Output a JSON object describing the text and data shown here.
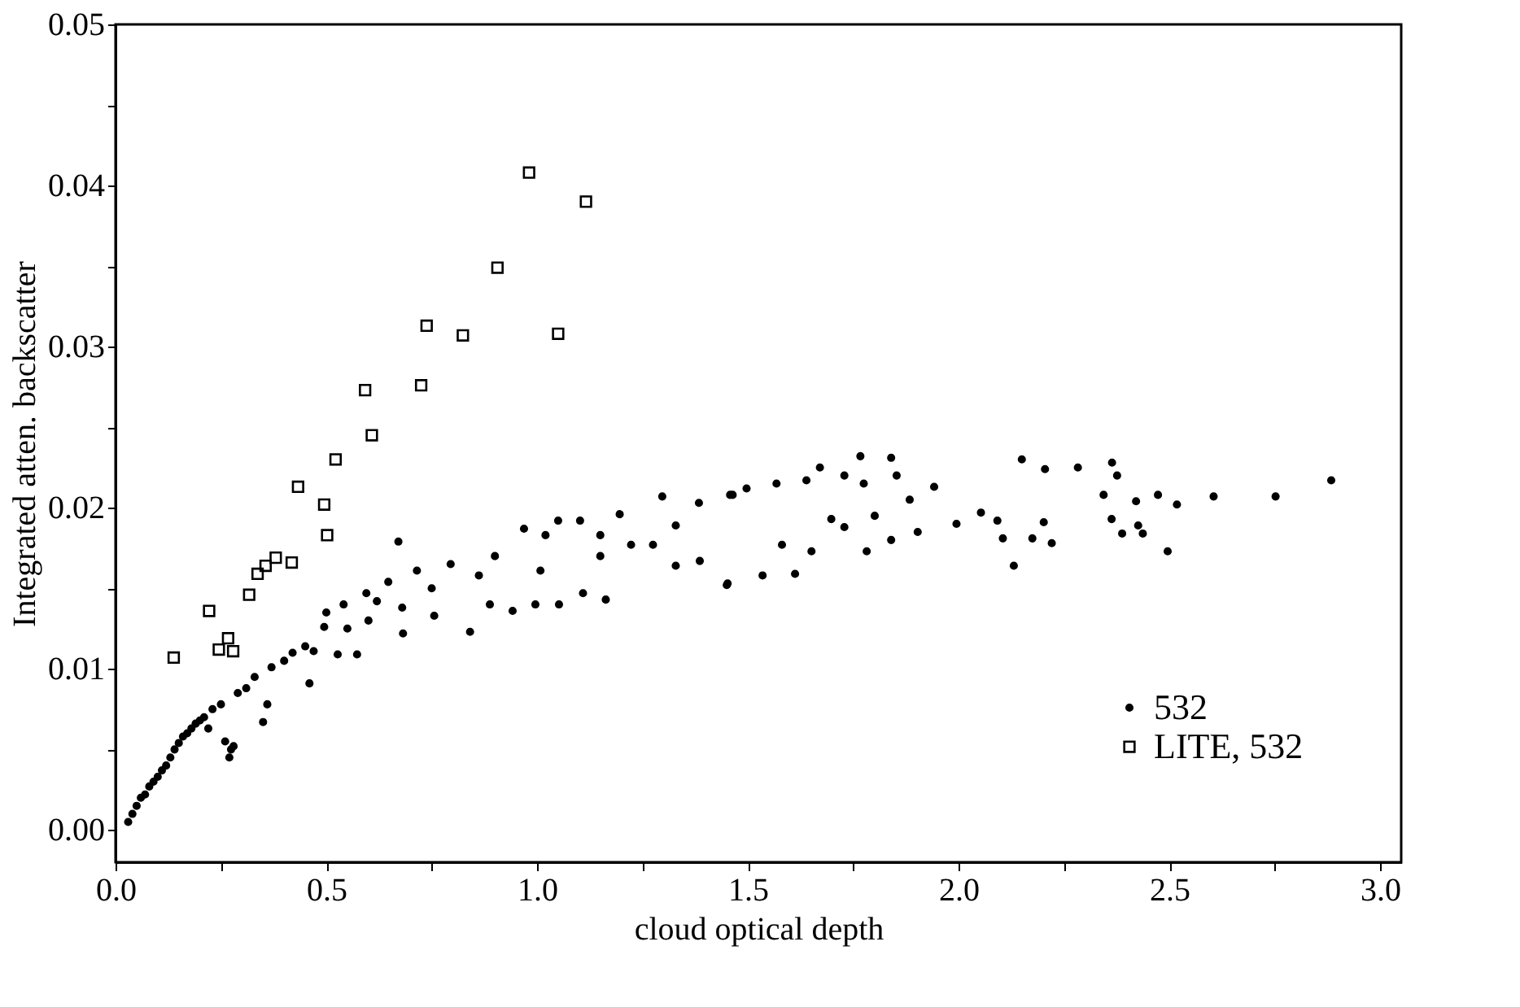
{
  "chart_data": {
    "type": "scatter",
    "xlabel": "cloud optical depth",
    "ylabel": "Integrated atten. backscatter",
    "xlim": [
      0,
      3.05
    ],
    "ylim": [
      -0.002,
      0.05
    ],
    "xticks": [
      {
        "value": 0,
        "label": "0.0"
      },
      {
        "value": 0.25,
        "label": null
      },
      0.5,
      {
        "value": 0.75,
        "label": null
      },
      {
        "value": 1,
        "label": "1.0"
      },
      {
        "value": 1.25,
        "label": null
      },
      1.5,
      {
        "value": 1.75,
        "label": null
      },
      {
        "value": 2,
        "label": "2.0"
      },
      {
        "value": 2.25,
        "label": null
      },
      2.5,
      {
        "value": 2.75,
        "label": null
      },
      {
        "value": 3,
        "label": "3.0"
      }
    ],
    "yticks": [
      {
        "value": 0,
        "label": "0.00"
      },
      {
        "value": 0.005,
        "label": null
      },
      {
        "value": 0.01,
        "label": "0.01"
      },
      {
        "value": 0.015,
        "label": null
      },
      {
        "value": 0.02,
        "label": "0.02"
      },
      {
        "value": 0.025,
        "label": null
      },
      {
        "value": 0.03,
        "label": "0.03"
      },
      {
        "value": 0.035,
        "label": null
      },
      {
        "value": 0.04,
        "label": "0.04"
      },
      {
        "value": 0.045,
        "label": null
      },
      {
        "value": 0.05,
        "label": "0.05"
      }
    ],
    "grid": false,
    "legend": "bottom right",
    "series": [
      {
        "name": "532",
        "color": "#000000",
        "marker": "circle",
        "x": [
          0.03,
          0.04,
          0.05,
          0.06,
          0.07,
          0.08,
          0.09,
          0.1,
          0.11,
          0.12,
          0.13,
          0.14,
          0.15,
          0.16,
          0.17,
          0.18,
          0.19,
          0.2,
          0.21,
          0.22,
          0.23,
          0.25,
          0.26,
          0.27,
          0.274,
          0.28,
          0.29,
          0.31,
          0.33,
          0.35,
          0.36,
          0.37,
          0.4,
          0.42,
          0.45,
          0.46,
          0.47,
          0.495,
          0.5,
          0.527,
          0.541,
          0.55,
          0.573,
          0.595,
          0.6,
          0.62,
          0.647,
          0.671,
          0.68,
          0.682,
          0.715,
          0.75,
          0.756,
          0.795,
          0.841,
          0.862,
          0.888,
          0.9,
          0.942,
          0.969,
          0.996,
          1.008,
          1.02,
          1.05,
          1.052,
          1.102,
          1.109,
          1.15,
          1.15,
          1.163,
          1.196,
          1.223,
          1.275,
          1.297,
          1.329,
          1.329,
          1.384,
          1.386,
          1.45,
          1.452,
          1.458,
          1.464,
          1.497,
          1.535,
          1.568,
          1.581,
          1.612,
          1.639,
          1.651,
          1.671,
          1.698,
          1.729,
          1.729,
          1.767,
          1.775,
          1.782,
          1.801,
          1.84,
          1.84,
          1.853,
          1.884,
          1.903,
          1.942,
          1.995,
          2.053,
          2.092,
          2.105,
          2.131,
          2.15,
          2.175,
          2.202,
          2.205,
          2.221,
          2.283,
          2.344,
          2.363,
          2.364,
          2.376,
          2.388,
          2.421,
          2.426,
          2.437,
          2.473,
          2.496,
          2.518,
          2.605,
          2.752,
          2.884
        ],
        "values": [
          0.0005,
          0.001,
          0.0015,
          0.002,
          0.0022,
          0.0027,
          0.003,
          0.0033,
          0.0037,
          0.004,
          0.0045,
          0.005,
          0.0054,
          0.0058,
          0.006,
          0.0063,
          0.0066,
          0.0068,
          0.007,
          0.0063,
          0.0075,
          0.0078,
          0.0055,
          0.0045,
          0.005,
          0.0052,
          0.0085,
          0.0088,
          0.0095,
          0.0067,
          0.0078,
          0.0101,
          0.0105,
          0.011,
          0.0114,
          0.0091,
          0.0111,
          0.0126,
          0.0135,
          0.0109,
          0.014,
          0.0125,
          0.0109,
          0.0147,
          0.013,
          0.0142,
          0.0154,
          0.0179,
          0.0138,
          0.0122,
          0.0161,
          0.015,
          0.0133,
          0.0165,
          0.0123,
          0.0158,
          0.014,
          0.017,
          0.0136,
          0.0187,
          0.014,
          0.0161,
          0.0183,
          0.0192,
          0.014,
          0.0192,
          0.0147,
          0.017,
          0.0183,
          0.0143,
          0.0196,
          0.0177,
          0.0177,
          0.0207,
          0.0189,
          0.0164,
          0.0203,
          0.0167,
          0.0152,
          0.0153,
          0.0208,
          0.0208,
          0.0212,
          0.0158,
          0.0215,
          0.0177,
          0.0159,
          0.0217,
          0.0173,
          0.0225,
          0.0193,
          0.022,
          0.0188,
          0.0232,
          0.0215,
          0.0173,
          0.0195,
          0.0231,
          0.018,
          0.022,
          0.0205,
          0.0185,
          0.0213,
          0.019,
          0.0197,
          0.0192,
          0.0181,
          0.0164,
          0.023,
          0.0181,
          0.0191,
          0.0224,
          0.0178,
          0.0225,
          0.0208,
          0.0193,
          0.0228,
          0.022,
          0.0184,
          0.0204,
          0.0189,
          0.0184,
          0.0208,
          0.0173,
          0.0202,
          0.0207,
          0.0207,
          0.0217
        ]
      },
      {
        "name": "LITE, 532",
        "color": "#000000",
        "marker": "square",
        "x": [
          0.138,
          0.222,
          0.245,
          0.267,
          0.279,
          0.317,
          0.337,
          0.356,
          0.38,
          0.418,
          0.433,
          0.495,
          0.502,
          0.522,
          0.592,
          0.608,
          0.725,
          0.738,
          0.824,
          0.906,
          0.981,
          1.05,
          1.116
        ],
        "values": [
          0.0107,
          0.0136,
          0.0112,
          0.0119,
          0.0111,
          0.0146,
          0.0159,
          0.0164,
          0.0169,
          0.0166,
          0.0213,
          0.0202,
          0.0183,
          0.023,
          0.0273,
          0.0245,
          0.0276,
          0.0313,
          0.0307,
          0.0349,
          0.0408,
          0.0308,
          0.039
        ]
      }
    ]
  }
}
